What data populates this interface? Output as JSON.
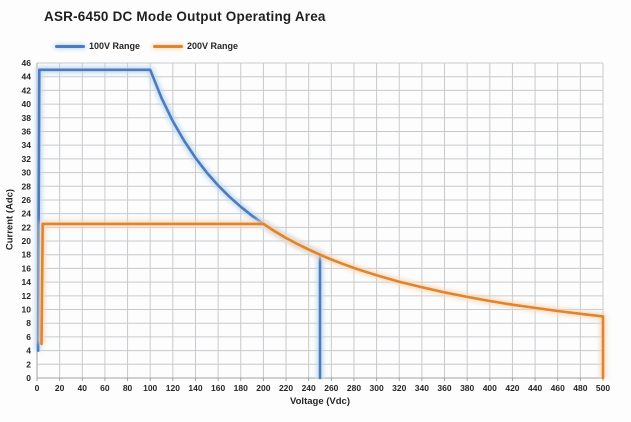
{
  "chart_data": {
    "type": "line",
    "title": "ASR-6450 DC Mode Output Operating Area",
    "xlabel": "Voltage (Vdc)",
    "ylabel": "Current (Adc)",
    "xlim": [
      0,
      500
    ],
    "ylim": [
      0,
      46
    ],
    "x_tick_step": 20,
    "y_tick_step": 2,
    "grid": true,
    "legend_position": "top-left",
    "colors": {
      "gridline": "#c7cacd",
      "axis_line": "#9ea3a8",
      "title_text": "#1f1f1f",
      "tick_text": "#262626",
      "background": "#fdfdfd"
    },
    "series": [
      {
        "name": "100V Range",
        "color": "#4E7ABF",
        "glow_color": "#BDD7EE",
        "points": [
          [
            1,
            4
          ],
          [
            2,
            45
          ],
          [
            100,
            45
          ],
          [
            110,
            40.91
          ],
          [
            120,
            37.5
          ],
          [
            130,
            34.62
          ],
          [
            140,
            32.14
          ],
          [
            150,
            30
          ],
          [
            160,
            28.13
          ],
          [
            170,
            26.47
          ],
          [
            180,
            25
          ],
          [
            190,
            23.68
          ],
          [
            200,
            22.5
          ],
          [
            210,
            21.43
          ],
          [
            220,
            20.45
          ],
          [
            230,
            19.57
          ],
          [
            240,
            18.75
          ],
          [
            250,
            18
          ],
          [
            250,
            0
          ]
        ]
      },
      {
        "name": "200V Range",
        "color": "#E0842F",
        "glow_color": "#F6D8B8",
        "points": [
          [
            4,
            5
          ],
          [
            5,
            22.5
          ],
          [
            200,
            22.5
          ],
          [
            210,
            21.43
          ],
          [
            220,
            20.45
          ],
          [
            230,
            19.57
          ],
          [
            240,
            18.75
          ],
          [
            250,
            18
          ],
          [
            260,
            17.31
          ],
          [
            270,
            16.67
          ],
          [
            280,
            16.07
          ],
          [
            290,
            15.52
          ],
          [
            300,
            15
          ],
          [
            320,
            14.06
          ],
          [
            340,
            13.24
          ],
          [
            360,
            12.5
          ],
          [
            380,
            11.84
          ],
          [
            400,
            11.25
          ],
          [
            420,
            10.71
          ],
          [
            440,
            10.23
          ],
          [
            460,
            9.78
          ],
          [
            480,
            9.38
          ],
          [
            500,
            9
          ],
          [
            500,
            0
          ]
        ]
      }
    ]
  }
}
